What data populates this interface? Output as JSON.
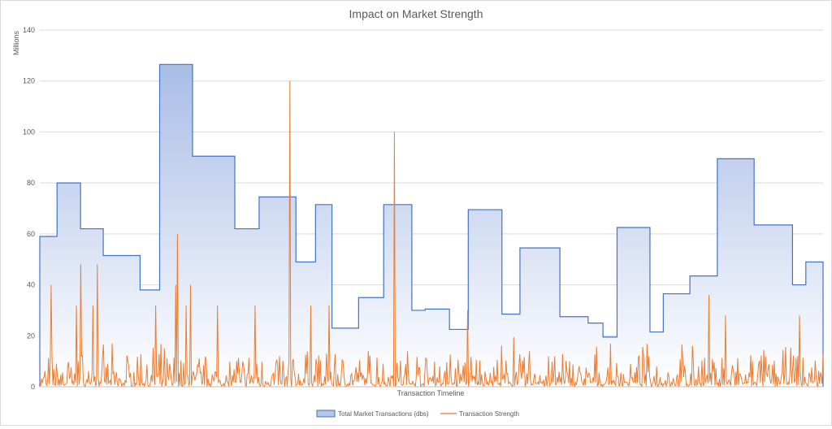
{
  "chart_data": {
    "type": "area",
    "title": "Impact on Market Strength",
    "xlabel": "Transaction Timeline",
    "ylabel": "Millions",
    "ylim": [
      0,
      140
    ],
    "yticks": [
      0,
      20,
      40,
      60,
      80,
      100,
      120,
      140
    ],
    "grid": true,
    "legend_position": "bottom",
    "colors": {
      "area_fill_top": "#a9bde6",
      "area_fill_bottom": "#ffffff",
      "area_stroke": "#4472c4",
      "line": "#ed7d31",
      "grid": "#d9d9d9",
      "axis": "#bfbfbf"
    },
    "series": [
      {
        "name": "Total Market Transactions (dbs)",
        "kind": "step-area",
        "x_start": [
          0.0,
          0.022,
          0.052,
          0.081,
          0.128,
          0.153,
          0.195,
          0.249,
          0.28,
          0.327,
          0.352,
          0.373,
          0.407,
          0.439,
          0.475,
          0.492,
          0.523,
          0.547,
          0.59,
          0.613,
          0.664,
          0.7,
          0.719,
          0.737,
          0.779,
          0.796,
          0.83,
          0.865,
          0.912,
          0.961,
          0.978
        ],
        "x_end": 1.0,
        "values": [
          59,
          80,
          62,
          51.5,
          38,
          126.5,
          90.5,
          62,
          74.5,
          49,
          71.5,
          23,
          35,
          71.5,
          30,
          30.5,
          22.5,
          69.5,
          28.5,
          54.5,
          27.5,
          25,
          19.5,
          62.5,
          21.5,
          36.5,
          43.5,
          89.5,
          63.5,
          40,
          49
        ]
      },
      {
        "name": "Transaction Strength",
        "kind": "line",
        "spikes": [
          {
            "x": 0.014,
            "value": 40
          },
          {
            "x": 0.052,
            "value": 48
          },
          {
            "x": 0.073,
            "value": 48
          },
          {
            "x": 0.047,
            "value": 32
          },
          {
            "x": 0.068,
            "value": 32
          },
          {
            "x": 0.148,
            "value": 32
          },
          {
            "x": 0.176,
            "value": 60
          },
          {
            "x": 0.174,
            "value": 40
          },
          {
            "x": 0.192,
            "value": 40
          },
          {
            "x": 0.187,
            "value": 32
          },
          {
            "x": 0.227,
            "value": 32
          },
          {
            "x": 0.275,
            "value": 32
          },
          {
            "x": 0.319,
            "value": 120
          },
          {
            "x": 0.346,
            "value": 32
          },
          {
            "x": 0.369,
            "value": 32
          },
          {
            "x": 0.453,
            "value": 100
          },
          {
            "x": 0.546,
            "value": 30
          },
          {
            "x": 0.605,
            "value": 19.5
          },
          {
            "x": 0.854,
            "value": 36
          },
          {
            "x": 0.875,
            "value": 28
          },
          {
            "x": 0.97,
            "value": 28
          }
        ],
        "noise_max": 17
      }
    ]
  }
}
